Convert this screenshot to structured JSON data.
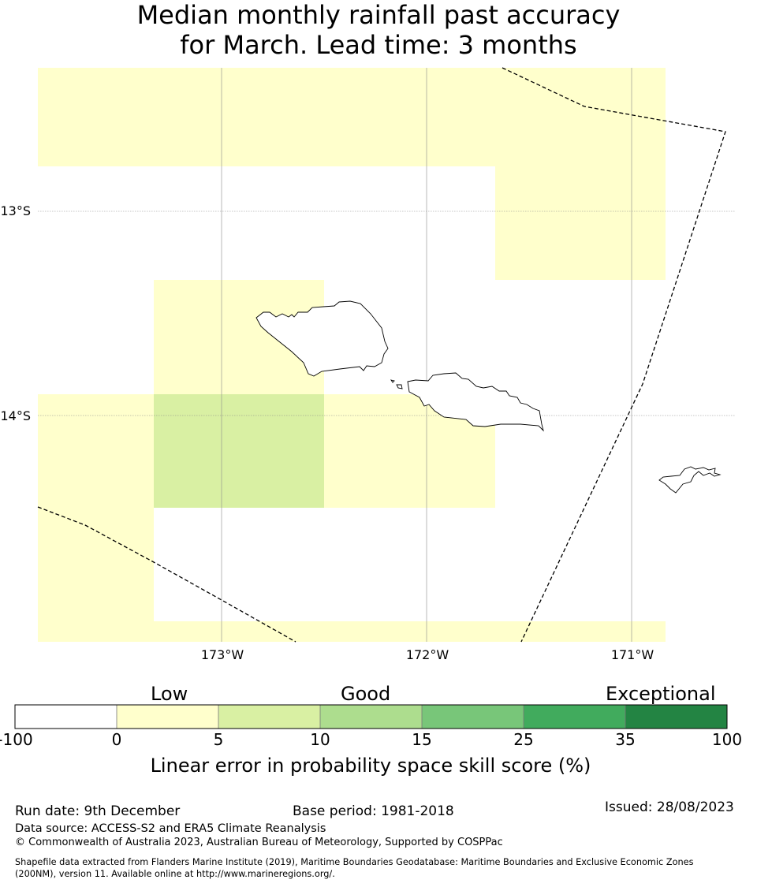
{
  "title": {
    "line1": "Median monthly rainfall past accuracy",
    "line2": "for March. Lead time: 3 months"
  },
  "map": {
    "lat_labels": [
      "13°S",
      "14°S"
    ],
    "lon_labels": [
      "173°W",
      "172°W",
      "171°W"
    ],
    "cell_colors": {
      "low": "#ffffcc",
      "good_low": "#d9f0a3"
    }
  },
  "colorbar": {
    "category_labels": {
      "low": "Low",
      "good": "Good",
      "exceptional": "Exceptional"
    },
    "ticks": [
      "-100",
      "0",
      "5",
      "10",
      "15",
      "25",
      "35",
      "100"
    ],
    "colors": [
      "#ffffff",
      "#ffffcc",
      "#d9f0a3",
      "#addd8e",
      "#78c679",
      "#41ab5d",
      "#238443"
    ],
    "label": "Linear error in probability space skill score (%)"
  },
  "footer": {
    "run_date": "Run date: 9th December",
    "base_period": "Base period: 1981-2018",
    "issued": "Issued: 28/08/2023",
    "data_source": "Data source: ACCESS-S2 and ERA5 Climate Reanalysis",
    "copyright": "© Commonwealth of Australia 2023, Australian Bureau of Meteorology, Supported by COSPPac",
    "shapefile_line1": "Shapefile data extracted from Flanders Marine Institute (2019), Maritime Boundaries Geodatabase: Maritime Boundaries and Exclusive Economic Zones",
    "shapefile_line2": "(200NM), version 11. Available online at http://www.marineregions.org/."
  }
}
